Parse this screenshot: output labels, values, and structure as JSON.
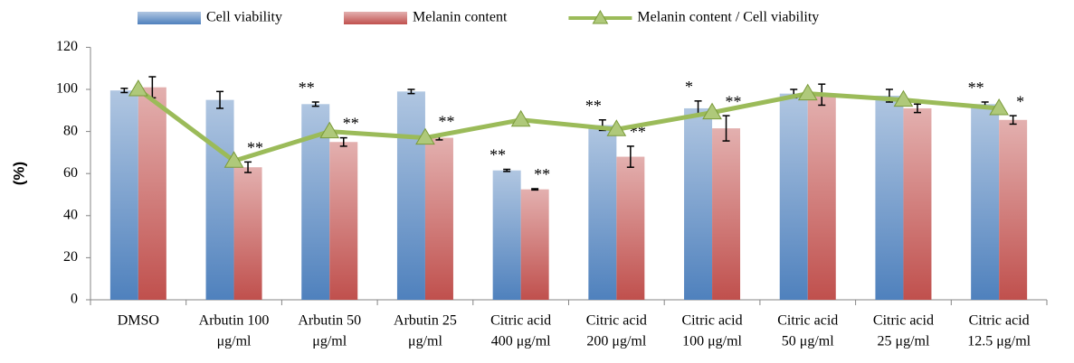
{
  "chart_data": {
    "type": "bar-line",
    "y_label": "(%)",
    "categories": [
      [
        "DMSO"
      ],
      [
        "Arbutin 100",
        "μg/ml"
      ],
      [
        "Arbutin 50",
        "μg/ml"
      ],
      [
        "Arbutin 25",
        "μg/ml"
      ],
      [
        "Citric acid",
        "400 μg/ml"
      ],
      [
        "Citric acid",
        "200 μg/ml"
      ],
      [
        "Citric acid",
        "100 μg/ml"
      ],
      [
        "Citric acid",
        "50 μg/ml"
      ],
      [
        "Citric acid",
        "25 μg/ml"
      ],
      [
        "Citric acid",
        "12.5 μg/ml"
      ]
    ],
    "ylim": [
      0,
      120
    ],
    "yticks": [
      0,
      20,
      40,
      60,
      80,
      100,
      120
    ],
    "grid": false,
    "series": [
      {
        "name": "Cell viability",
        "type": "bar",
        "color": "#4f81bd",
        "values": [
          99.5,
          95,
          93,
          99,
          61.5,
          83,
          91,
          98,
          97,
          93
        ],
        "errors": [
          1,
          4,
          1,
          1,
          0.5,
          2.5,
          3.5,
          2,
          3,
          1
        ],
        "significance": [
          null,
          null,
          "**",
          null,
          "**",
          "**",
          "*",
          null,
          null,
          "**"
        ]
      },
      {
        "name": "Melanin content",
        "type": "bar",
        "color": "#c0504d",
        "values": [
          101,
          63,
          75,
          77,
          52.5,
          68,
          81.5,
          97.5,
          91,
          85.5
        ],
        "errors": [
          5,
          2.5,
          2,
          1,
          0.3,
          5,
          6,
          5,
          2,
          2
        ],
        "significance": [
          null,
          "**",
          "**",
          "**",
          "**",
          "**",
          "**",
          null,
          null,
          "*"
        ]
      },
      {
        "name": "Melanin content / Cell viability",
        "type": "line",
        "color": "#9bbb59",
        "values": [
          100,
          66,
          80,
          77,
          85.5,
          81,
          89,
          98,
          95,
          91
        ]
      }
    ]
  }
}
